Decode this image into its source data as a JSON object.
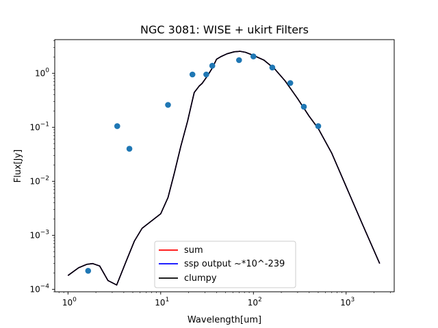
{
  "chart_data": {
    "type": "scatter",
    "title": "NGC 3081: WISE + ukirt Filters",
    "xlabel": "Wavelength[um]",
    "ylabel": "Flux[Jy]",
    "xscale": "log",
    "yscale": "log",
    "xlim": [
      0.72,
      3300
    ],
    "ylim": [
      9e-05,
      4.2
    ],
    "grid": false,
    "legend_position": "lower-center",
    "x_ticks": [
      {
        "value": 1,
        "base": "10",
        "exp": "0"
      },
      {
        "value": 10,
        "base": "10",
        "exp": "1"
      },
      {
        "value": 100,
        "base": "10",
        "exp": "2"
      },
      {
        "value": 1000,
        "base": "10",
        "exp": "3"
      }
    ],
    "y_ticks": [
      {
        "value": 0.0001,
        "base": "10",
        "exp": "−4"
      },
      {
        "value": 0.001,
        "base": "10",
        "exp": "−3"
      },
      {
        "value": 0.01,
        "base": "10",
        "exp": "−2"
      },
      {
        "value": 0.1,
        "base": "10",
        "exp": "−1"
      },
      {
        "value": 1,
        "base": "10",
        "exp": "0"
      }
    ],
    "colors": {
      "points": "#1f77b4",
      "sum": "#ff0000",
      "ssp": "#0000ff",
      "clumpy": "#000000"
    },
    "points": {
      "x": [
        1.65,
        3.4,
        4.6,
        12,
        22,
        31,
        36,
        70,
        100,
        160,
        250,
        350,
        500
      ],
      "y": [
        0.00022,
        0.105,
        0.04,
        0.26,
        0.95,
        0.95,
        1.38,
        1.75,
        2.05,
        1.28,
        0.66,
        0.24,
        0.105
      ]
    },
    "series": [
      {
        "name": "sum",
        "color": "#ff0000",
        "x": [
          1.0,
          1.3,
          1.6,
          1.85,
          2.2,
          2.7,
          3.35,
          4.3,
          5.2,
          6.3,
          7.8,
          10,
          12,
          14,
          16.5,
          19.5,
          22,
          23,
          26,
          28,
          32,
          36,
          40,
          45,
          52,
          62,
          72,
          82,
          100,
          130,
          170,
          220,
          300,
          400,
          500,
          700,
          1000,
          1500,
          2300
        ],
        "y": [
          0.00018,
          0.00025,
          0.00029,
          0.0003,
          0.00027,
          0.000145,
          0.00012,
          0.00035,
          0.00078,
          0.00135,
          0.0018,
          0.0025,
          0.005,
          0.014,
          0.045,
          0.13,
          0.32,
          0.44,
          0.58,
          0.65,
          0.9,
          1.25,
          1.82,
          2.05,
          2.3,
          2.5,
          2.55,
          2.45,
          2.15,
          1.75,
          1.2,
          0.72,
          0.34,
          0.16,
          0.095,
          0.033,
          0.008,
          0.0016,
          0.0003
        ]
      },
      {
        "name": "ssp output ~*10^-239",
        "color": "#0000ff",
        "x": [
          1.0,
          1.3,
          1.6,
          1.85,
          2.2,
          2.7,
          3.35,
          4.3,
          5.2,
          6.3,
          7.8,
          10,
          12,
          14,
          16.5,
          19.5,
          22,
          23,
          26,
          28,
          32,
          36,
          40,
          45,
          52,
          62,
          72,
          82,
          100,
          130,
          170,
          220,
          300,
          400,
          500,
          700,
          1000,
          1500,
          2300
        ],
        "y": [
          0.00018,
          0.00025,
          0.00029,
          0.0003,
          0.00027,
          0.000145,
          0.00012,
          0.00035,
          0.00078,
          0.00135,
          0.0018,
          0.0025,
          0.005,
          0.014,
          0.045,
          0.13,
          0.32,
          0.44,
          0.58,
          0.65,
          0.9,
          1.25,
          1.82,
          2.05,
          2.3,
          2.5,
          2.55,
          2.45,
          2.15,
          1.75,
          1.2,
          0.72,
          0.34,
          0.16,
          0.095,
          0.033,
          0.008,
          0.0016,
          0.0003
        ]
      },
      {
        "name": "clumpy",
        "color": "#000000",
        "x": [
          1.0,
          1.3,
          1.6,
          1.85,
          2.2,
          2.7,
          3.35,
          4.3,
          5.2,
          6.3,
          7.8,
          10,
          12,
          14,
          16.5,
          19.5,
          22,
          23,
          26,
          28,
          32,
          36,
          40,
          45,
          52,
          62,
          72,
          82,
          100,
          130,
          170,
          220,
          300,
          400,
          500,
          700,
          1000,
          1500,
          2300
        ],
        "y": [
          0.00018,
          0.00025,
          0.00029,
          0.0003,
          0.00027,
          0.000145,
          0.00012,
          0.00035,
          0.00078,
          0.00135,
          0.0018,
          0.0025,
          0.005,
          0.014,
          0.045,
          0.13,
          0.32,
          0.44,
          0.58,
          0.65,
          0.9,
          1.25,
          1.82,
          2.05,
          2.3,
          2.5,
          2.55,
          2.45,
          2.15,
          1.75,
          1.2,
          0.72,
          0.34,
          0.16,
          0.095,
          0.033,
          0.008,
          0.0016,
          0.0003
        ]
      }
    ]
  }
}
